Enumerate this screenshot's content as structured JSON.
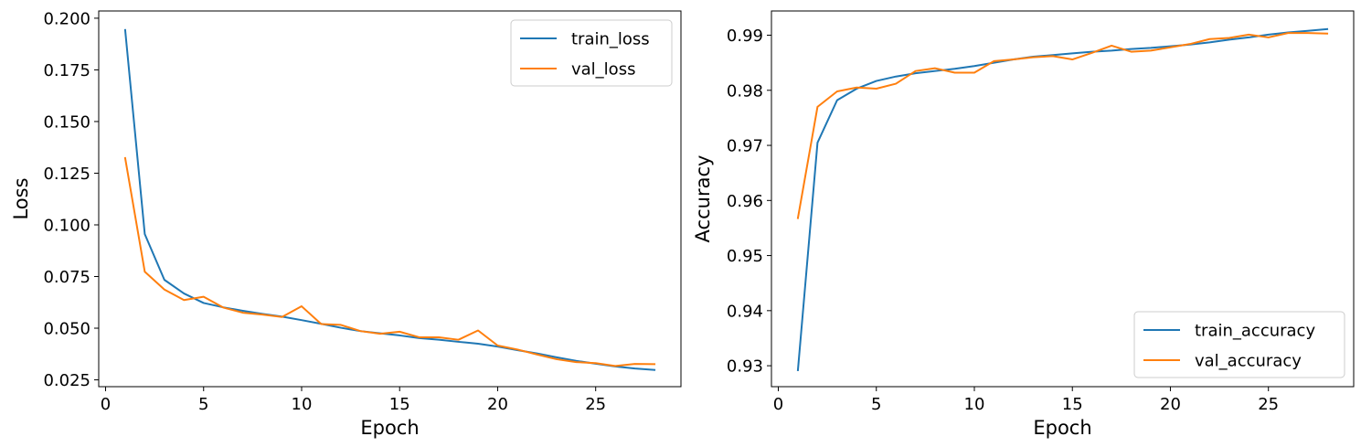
{
  "chart_data": [
    {
      "type": "line",
      "title": "",
      "xlabel": "Epoch",
      "ylabel": "Loss",
      "xlim": [
        -0.35,
        29.35
      ],
      "ylim": [
        0.0217,
        0.2035
      ],
      "xticks": [
        0,
        5,
        10,
        15,
        20,
        25
      ],
      "xtick_labels": [
        "0",
        "5",
        "10",
        "15",
        "20",
        "25"
      ],
      "yticks": [
        0.025,
        0.05,
        0.075,
        0.1,
        0.125,
        0.15,
        0.175,
        0.2
      ],
      "ytick_labels": [
        "0.025",
        "0.050",
        "0.075",
        "0.100",
        "0.125",
        "0.150",
        "0.175",
        "0.200"
      ],
      "legend_position": "top-right",
      "grid": false,
      "x": [
        1,
        2,
        3,
        4,
        5,
        6,
        7,
        8,
        9,
        10,
        11,
        12,
        13,
        14,
        15,
        16,
        17,
        18,
        19,
        20,
        21,
        22,
        23,
        24,
        25,
        26,
        27,
        28
      ],
      "series": [
        {
          "name": "train_loss",
          "color": "#1f77b4",
          "values": [
            0.1943,
            0.0955,
            0.0734,
            0.0668,
            0.0622,
            0.0601,
            0.0584,
            0.0569,
            0.0556,
            0.0539,
            0.0521,
            0.0502,
            0.0486,
            0.0475,
            0.0465,
            0.0452,
            0.0444,
            0.0434,
            0.0425,
            0.0411,
            0.0394,
            0.0378,
            0.0359,
            0.0342,
            0.0328,
            0.0315,
            0.0305,
            0.0298
          ]
        },
        {
          "name": "val_loss",
          "color": "#ff7f0e",
          "values": [
            0.1323,
            0.0773,
            0.0687,
            0.0636,
            0.0652,
            0.06,
            0.0575,
            0.0566,
            0.0554,
            0.0606,
            0.052,
            0.0516,
            0.0486,
            0.0473,
            0.0483,
            0.0456,
            0.0456,
            0.0444,
            0.0489,
            0.0416,
            0.0397,
            0.0373,
            0.035,
            0.0336,
            0.0331,
            0.0317,
            0.0327,
            0.0326
          ]
        }
      ]
    },
    {
      "type": "line",
      "title": "",
      "xlabel": "Epoch",
      "ylabel": "Accuracy",
      "xlim": [
        -0.35,
        29.35
      ],
      "ylim": [
        0.9262,
        0.9944
      ],
      "xticks": [
        0,
        5,
        10,
        15,
        20,
        25
      ],
      "xtick_labels": [
        "0",
        "5",
        "10",
        "15",
        "20",
        "25"
      ],
      "yticks": [
        0.93,
        0.94,
        0.95,
        0.96,
        0.97,
        0.98,
        0.99
      ],
      "ytick_labels": [
        "0.93",
        "0.94",
        "0.95",
        "0.96",
        "0.97",
        "0.98",
        "0.99"
      ],
      "legend_position": "bottom-right",
      "grid": false,
      "x": [
        1,
        2,
        3,
        4,
        5,
        6,
        7,
        8,
        9,
        10,
        11,
        12,
        13,
        14,
        15,
        16,
        17,
        18,
        19,
        20,
        21,
        22,
        23,
        24,
        25,
        26,
        27,
        28
      ],
      "series": [
        {
          "name": "train_accuracy",
          "color": "#1f77b4",
          "values": [
            0.9292,
            0.9705,
            0.9782,
            0.9803,
            0.9817,
            0.9825,
            0.9831,
            0.9835,
            0.9839,
            0.9844,
            0.985,
            0.9856,
            0.9861,
            0.9864,
            0.9867,
            0.987,
            0.9872,
            0.9875,
            0.9877,
            0.988,
            0.9883,
            0.9887,
            0.9892,
            0.9896,
            0.9901,
            0.9905,
            0.9908,
            0.9911
          ]
        },
        {
          "name": "val_accuracy",
          "color": "#ff7f0e",
          "values": [
            0.9568,
            0.977,
            0.9798,
            0.9805,
            0.9803,
            0.9812,
            0.9835,
            0.984,
            0.9832,
            0.9832,
            0.9853,
            0.9856,
            0.986,
            0.9862,
            0.9856,
            0.9868,
            0.9881,
            0.987,
            0.9872,
            0.9878,
            0.9884,
            0.9893,
            0.9895,
            0.9901,
            0.9896,
            0.9904,
            0.9904,
            0.9903
          ]
        }
      ]
    }
  ]
}
